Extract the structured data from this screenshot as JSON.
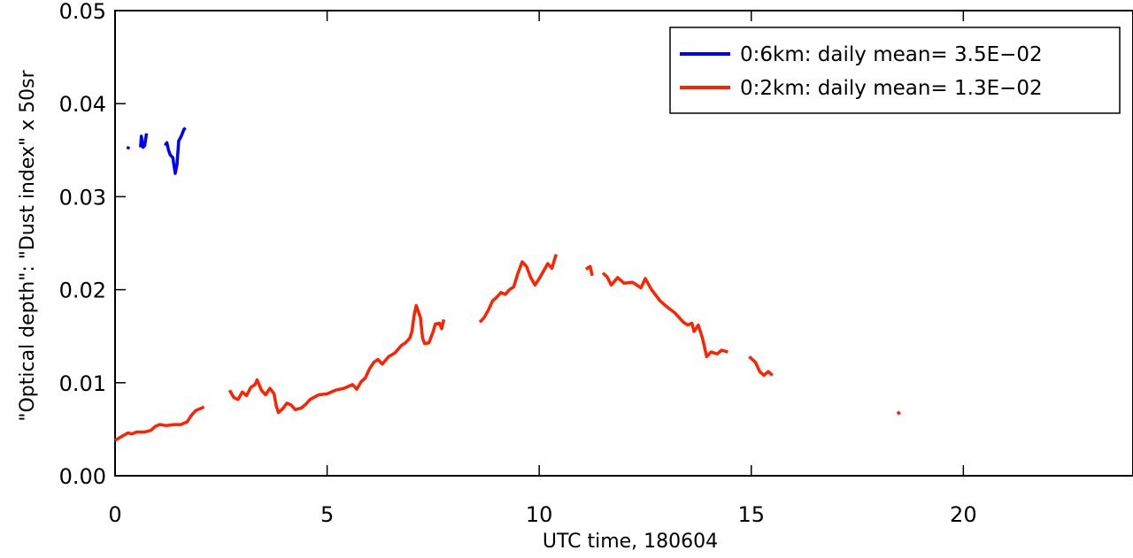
{
  "chart_data": {
    "type": "line",
    "title": "",
    "xlabel": "UTC time, 180604",
    "ylabel": "\"Optical depth\": \"Dust index\" x 50sr",
    "xlim": [
      0,
      24
    ],
    "ylim": [
      0,
      0.05
    ],
    "x_ticks": [
      0,
      5,
      10,
      15,
      20
    ],
    "x_tick_labels": [
      "0",
      "5",
      "10",
      "15",
      "20"
    ],
    "y_ticks": [
      0,
      0.01,
      0.02,
      0.03,
      0.04,
      0.05
    ],
    "y_tick_labels": [
      "0.00",
      "0.01",
      "0.02",
      "0.03",
      "0.04",
      "0.05"
    ],
    "grid": false,
    "legend_position": "top-right",
    "series": [
      {
        "name": "0:6km: daily mean= 3.5E−02",
        "color": "#0000ff",
        "segments": [
          [
            [
              0.3,
              0.0351
            ],
            [
              0.32,
              0.0354
            ]
          ],
          [
            [
              0.6,
              0.0353
            ],
            [
              0.62,
              0.0365
            ],
            [
              0.66,
              0.0353
            ],
            [
              0.7,
              0.0355
            ],
            [
              0.74,
              0.0368
            ]
          ],
          [
            [
              1.18,
              0.0355
            ],
            [
              1.22,
              0.0358
            ],
            [
              1.26,
              0.035
            ],
            [
              1.3,
              0.0345
            ],
            [
              1.36,
              0.0342
            ],
            [
              1.42,
              0.0325
            ],
            [
              1.46,
              0.0335
            ],
            [
              1.5,
              0.036
            ],
            [
              1.56,
              0.0365
            ],
            [
              1.62,
              0.0372
            ],
            [
              1.66,
              0.0374
            ]
          ]
        ]
      },
      {
        "name": "0:2km: daily mean= 1.3E−02",
        "color": "#ff2200",
        "segments": [
          [
            [
              0.0,
              0.0038
            ],
            [
              0.15,
              0.0042
            ],
            [
              0.3,
              0.0046
            ],
            [
              0.4,
              0.0045
            ],
            [
              0.5,
              0.0047
            ],
            [
              0.7,
              0.0047
            ],
            [
              0.85,
              0.0049
            ],
            [
              0.95,
              0.0053
            ],
            [
              1.05,
              0.0055
            ],
            [
              1.2,
              0.0054
            ],
            [
              1.4,
              0.0055
            ],
            [
              1.55,
              0.0055
            ],
            [
              1.7,
              0.0058
            ],
            [
              1.8,
              0.0065
            ],
            [
              1.9,
              0.007
            ],
            [
              2.0,
              0.0072
            ],
            [
              2.1,
              0.0074
            ]
          ],
          [
            [
              2.7,
              0.0092
            ],
            [
              2.8,
              0.0084
            ],
            [
              2.9,
              0.0082
            ],
            [
              3.0,
              0.009
            ],
            [
              3.1,
              0.0086
            ],
            [
              3.2,
              0.0095
            ],
            [
              3.3,
              0.0098
            ],
            [
              3.35,
              0.0103
            ],
            [
              3.45,
              0.0092
            ],
            [
              3.55,
              0.0087
            ],
            [
              3.65,
              0.0094
            ],
            [
              3.75,
              0.0088
            ],
            [
              3.8,
              0.0075
            ],
            [
              3.85,
              0.0068
            ],
            [
              3.95,
              0.0072
            ],
            [
              4.05,
              0.0078
            ],
            [
              4.15,
              0.0076
            ],
            [
              4.25,
              0.0071
            ],
            [
              4.4,
              0.0073
            ],
            [
              4.5,
              0.0077
            ],
            [
              4.6,
              0.0082
            ],
            [
              4.8,
              0.0087
            ],
            [
              5.0,
              0.0088
            ],
            [
              5.2,
              0.0092
            ],
            [
              5.4,
              0.0094
            ],
            [
              5.6,
              0.0098
            ],
            [
              5.7,
              0.0093
            ],
            [
              5.8,
              0.0101
            ],
            [
              5.9,
              0.0105
            ],
            [
              6.0,
              0.0115
            ],
            [
              6.1,
              0.0122
            ],
            [
              6.2,
              0.0125
            ],
            [
              6.3,
              0.012
            ],
            [
              6.45,
              0.0128
            ],
            [
              6.6,
              0.0132
            ],
            [
              6.75,
              0.014
            ],
            [
              6.85,
              0.0143
            ],
            [
              6.95,
              0.0148
            ],
            [
              7.0,
              0.0155
            ],
            [
              7.05,
              0.0172
            ],
            [
              7.1,
              0.0183
            ],
            [
              7.2,
              0.017
            ],
            [
              7.25,
              0.0148
            ],
            [
              7.3,
              0.0142
            ],
            [
              7.4,
              0.0143
            ],
            [
              7.5,
              0.0155
            ],
            [
              7.55,
              0.0163
            ],
            [
              7.65,
              0.0164
            ],
            [
              7.7,
              0.0158
            ],
            [
              7.75,
              0.0168
            ]
          ],
          [
            [
              8.6,
              0.0165
            ],
            [
              8.7,
              0.017
            ],
            [
              8.8,
              0.0178
            ],
            [
              8.9,
              0.0188
            ],
            [
              9.0,
              0.0192
            ],
            [
              9.1,
              0.0197
            ],
            [
              9.2,
              0.0195
            ],
            [
              9.3,
              0.02
            ],
            [
              9.4,
              0.0203
            ],
            [
              9.5,
              0.0218
            ],
            [
              9.6,
              0.023
            ],
            [
              9.7,
              0.0225
            ],
            [
              9.8,
              0.0213
            ],
            [
              9.9,
              0.0205
            ],
            [
              10.0,
              0.0212
            ],
            [
              10.1,
              0.022
            ],
            [
              10.2,
              0.0228
            ],
            [
              10.3,
              0.0223
            ],
            [
              10.4,
              0.0238
            ]
          ],
          [
            [
              11.1,
              0.0222
            ],
            [
              11.2,
              0.0225
            ],
            [
              11.25,
              0.0215
            ]
          ],
          [
            [
              11.5,
              0.0218
            ],
            [
              11.6,
              0.0214
            ],
            [
              11.7,
              0.0205
            ],
            [
              11.85,
              0.0213
            ],
            [
              12.0,
              0.0207
            ],
            [
              12.2,
              0.0208
            ],
            [
              12.4,
              0.0202
            ],
            [
              12.5,
              0.0212
            ],
            [
              12.65,
              0.02
            ],
            [
              12.85,
              0.0188
            ],
            [
              13.0,
              0.0182
            ],
            [
              13.2,
              0.0175
            ],
            [
              13.4,
              0.0165
            ],
            [
              13.5,
              0.0162
            ],
            [
              13.6,
              0.0164
            ],
            [
              13.65,
              0.0155
            ],
            [
              13.75,
              0.0162
            ],
            [
              13.85,
              0.0148
            ],
            [
              13.95,
              0.0128
            ],
            [
              14.05,
              0.0133
            ],
            [
              14.2,
              0.0131
            ],
            [
              14.3,
              0.0135
            ],
            [
              14.45,
              0.0133
            ]
          ],
          [
            [
              14.95,
              0.0128
            ],
            [
              15.1,
              0.0122
            ],
            [
              15.2,
              0.0112
            ],
            [
              15.3,
              0.0108
            ],
            [
              15.4,
              0.0112
            ],
            [
              15.5,
              0.0108
            ]
          ],
          [
            [
              18.45,
              0.0069
            ],
            [
              18.5,
              0.0066
            ]
          ]
        ]
      }
    ]
  }
}
